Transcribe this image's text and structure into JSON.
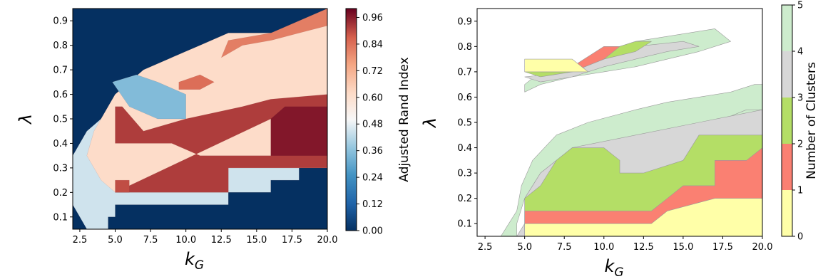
{
  "chart_data": [
    {
      "type": "heatmap",
      "xlabel": "k_G",
      "ylabel": "λ",
      "xlim": [
        2,
        20
      ],
      "ylim": [
        0.05,
        0.95
      ],
      "x_ticks": [
        "2.5",
        "5.0",
        "7.5",
        "10.0",
        "12.5",
        "15.0",
        "17.5",
        "20.0"
      ],
      "y_ticks": [
        "0.1",
        "0.2",
        "0.3",
        "0.4",
        "0.5",
        "0.6",
        "0.7",
        "0.8",
        "0.9"
      ],
      "colorbar": {
        "label": "Adjusted Rand Index",
        "range": [
          0,
          1
        ],
        "ticks": [
          "0.00",
          "0.12",
          "0.24",
          "0.36",
          "0.48",
          "0.60",
          "0.72",
          "0.84",
          "0.96"
        ]
      },
      "regions": [
        {
          "value": 0.45,
          "poly": [
            [
              3,
              0.05
            ],
            [
              4.5,
              0.05
            ],
            [
              4.5,
              0.1
            ],
            [
              5,
              0.1
            ],
            [
              5,
              0.15
            ],
            [
              13,
              0.15
            ],
            [
              13,
              0.2
            ],
            [
              16,
              0.2
            ],
            [
              16,
              0.25
            ],
            [
              18,
              0.25
            ],
            [
              18,
              0.3
            ],
            [
              20,
              0.3
            ],
            [
              20,
              0.95
            ],
            [
              19,
              0.9
            ],
            [
              17,
              0.85
            ],
            [
              15,
              0.85
            ],
            [
              13,
              0.85
            ],
            [
              11,
              0.8
            ],
            [
              9,
              0.75
            ],
            [
              8,
              0.7
            ],
            [
              6,
              0.65
            ],
            [
              5,
              0.6
            ],
            [
              4.5,
              0.55
            ],
            [
              4,
              0.5
            ],
            [
              3,
              0.45
            ],
            [
              2,
              0.35
            ],
            [
              2,
              0.15
            ],
            [
              2.5,
              0.1
            ]
          ]
        },
        {
          "value": 0.62,
          "poly": [
            [
              4,
              0.25
            ],
            [
              5,
              0.2
            ],
            [
              13,
              0.2
            ],
            [
              13,
              0.3
            ],
            [
              20,
              0.3
            ],
            [
              20,
              0.9
            ],
            [
              17,
              0.85
            ],
            [
              13,
              0.85
            ],
            [
              11,
              0.8
            ],
            [
              9,
              0.75
            ],
            [
              7,
              0.7
            ],
            [
              5,
              0.6
            ],
            [
              3.5,
              0.45
            ],
            [
              3,
              0.35
            ]
          ]
        },
        {
          "value": 0.35,
          "poly": [
            [
              4.8,
              0.65
            ],
            [
              6,
              0.55
            ],
            [
              8,
              0.5
            ],
            [
              10,
              0.5
            ],
            [
              10,
              0.6
            ],
            [
              8,
              0.65
            ],
            [
              6.5,
              0.68
            ]
          ]
        },
        {
          "value": 0.92,
          "poly": [
            [
              5,
              0.2
            ],
            [
              13,
              0.2
            ],
            [
              13,
              0.3
            ],
            [
              20,
              0.3
            ],
            [
              20,
              0.4
            ],
            [
              19,
              0.42
            ],
            [
              16,
              0.35
            ],
            [
              13,
              0.35
            ],
            [
              11,
              0.35
            ],
            [
              9,
              0.4
            ],
            [
              7,
              0.4
            ],
            [
              5,
              0.4
            ],
            [
              5,
              0.55
            ],
            [
              5.5,
              0.55
            ],
            [
              7,
              0.45
            ],
            [
              10,
              0.5
            ],
            [
              14,
              0.55
            ],
            [
              16,
              0.58
            ],
            [
              20,
              0.6
            ],
            [
              20,
              0.4
            ],
            [
              18,
              0.45
            ],
            [
              16,
              0.5
            ]
          ]
        },
        {
          "value": 0.9,
          "poly": [
            [
              5,
              0.2
            ],
            [
              6,
              0.2
            ],
            [
              6,
              0.25
            ],
            [
              5,
              0.25
            ]
          ]
        },
        {
          "value": 0.97,
          "poly": [
            [
              16,
              0.35
            ],
            [
              20,
              0.35
            ],
            [
              20,
              0.55
            ],
            [
              17,
              0.55
            ],
            [
              16,
              0.5
            ]
          ]
        },
        {
          "value": 0.82,
          "poly": [
            [
              12.5,
              0.75
            ],
            [
              14,
              0.8
            ],
            [
              16,
              0.82
            ],
            [
              18,
              0.85
            ],
            [
              20,
              0.88
            ],
            [
              20,
              0.95
            ],
            [
              18,
              0.9
            ],
            [
              16,
              0.85
            ],
            [
              13,
              0.82
            ]
          ]
        },
        {
          "value": 0.85,
          "poly": [
            [
              9.5,
              0.65
            ],
            [
              11,
              0.68
            ],
            [
              12,
              0.65
            ],
            [
              11,
              0.62
            ],
            [
              9.5,
              0.62
            ]
          ]
        }
      ]
    },
    {
      "type": "heatmap",
      "xlabel": "k_G",
      "ylabel": "λ",
      "xlim": [
        2,
        20
      ],
      "ylim": [
        0.05,
        0.95
      ],
      "x_ticks": [
        "2.5",
        "5.0",
        "7.5",
        "10.0",
        "12.5",
        "15.0",
        "17.5",
        "20.0"
      ],
      "y_ticks": [
        "0.1",
        "0.2",
        "0.3",
        "0.4",
        "0.5",
        "0.6",
        "0.7",
        "0.8",
        "0.9"
      ],
      "colorbar": {
        "label": "Number of Clusters",
        "range": [
          0,
          5
        ],
        "ticks": [
          "0",
          "1",
          "2",
          "3",
          "4",
          "5"
        ],
        "colors": [
          "#ffffa8",
          "#fa8072",
          "#b4de66",
          "#d7d7d7",
          "#cdeccd"
        ]
      },
      "regions": [
        {
          "level": 4,
          "poly": [
            [
              4.5,
              0.05
            ],
            [
              5.5,
              0.05
            ],
            [
              5.5,
              0.1
            ],
            [
              6,
              0.1
            ],
            [
              6,
              0.15
            ],
            [
              6.5,
              0.2
            ],
            [
              7,
              0.25
            ],
            [
              7.5,
              0.3
            ],
            [
              8,
              0.35
            ],
            [
              9,
              0.4
            ],
            [
              10,
              0.45
            ],
            [
              12,
              0.5
            ],
            [
              14,
              0.52
            ],
            [
              16,
              0.55
            ],
            [
              18,
              0.6
            ],
            [
              20,
              0.65
            ],
            [
              20,
              0.05
            ]
          ]
        },
        {
          "level": 4,
          "poly": [
            [
              3.5,
              0.05
            ],
            [
              4,
              0.1
            ],
            [
              4.5,
              0.15
            ],
            [
              4.8,
              0.25
            ],
            [
              5.5,
              0.35
            ],
            [
              7,
              0.45
            ],
            [
              9,
              0.5
            ],
            [
              12,
              0.55
            ],
            [
              14,
              0.58
            ],
            [
              16,
              0.6
            ],
            [
              18,
              0.62
            ],
            [
              19.5,
              0.65
            ],
            [
              20,
              0.65
            ],
            [
              20,
              0.55
            ],
            [
              19,
              0.55
            ],
            [
              17,
              0.5
            ],
            [
              14,
              0.45
            ],
            [
              11,
              0.42
            ],
            [
              8,
              0.4
            ],
            [
              6,
              0.3
            ],
            [
              5,
              0.2
            ],
            [
              4.5,
              0.1
            ],
            [
              4.5,
              0.05
            ]
          ]
        },
        {
          "level": 3,
          "poly": [
            [
              4.5,
              0.05
            ],
            [
              5,
              0.1
            ],
            [
              5,
              0.2
            ],
            [
              6,
              0.3
            ],
            [
              8,
              0.4
            ],
            [
              12,
              0.45
            ],
            [
              16,
              0.5
            ],
            [
              20,
              0.55
            ],
            [
              20,
              0.05
            ]
          ]
        },
        {
          "level": 2,
          "poly": [
            [
              5,
              0.05
            ],
            [
              5,
              0.15
            ],
            [
              5,
              0.2
            ],
            [
              6,
              0.25
            ],
            [
              7,
              0.35
            ],
            [
              8,
              0.4
            ],
            [
              10,
              0.4
            ],
            [
              11,
              0.35
            ],
            [
              11,
              0.3
            ],
            [
              12.5,
              0.3
            ],
            [
              15,
              0.35
            ],
            [
              16,
              0.45
            ],
            [
              20,
              0.45
            ],
            [
              20,
              0.05
            ]
          ]
        },
        {
          "level": 1,
          "poly": [
            [
              5,
              0.05
            ],
            [
              5,
              0.15
            ],
            [
              13,
              0.15
            ],
            [
              14,
              0.2
            ],
            [
              15,
              0.25
            ],
            [
              17,
              0.25
            ],
            [
              17,
              0.35
            ],
            [
              19,
              0.35
            ],
            [
              20,
              0.4
            ],
            [
              20,
              0.05
            ]
          ]
        },
        {
          "level": 0,
          "poly": [
            [
              5,
              0.05
            ],
            [
              5,
              0.1
            ],
            [
              13,
              0.1
            ],
            [
              14,
              0.15
            ],
            [
              17,
              0.2
            ],
            [
              20,
              0.2
            ],
            [
              20,
              0.05
            ]
          ]
        },
        {
          "level": 4,
          "poly": [
            [
              5,
              0.65
            ],
            [
              6,
              0.7
            ],
            [
              8,
              0.72
            ],
            [
              10,
              0.78
            ],
            [
              12,
              0.82
            ],
            [
              15,
              0.85
            ],
            [
              17,
              0.87
            ],
            [
              18,
              0.82
            ],
            [
              16,
              0.78
            ],
            [
              14,
              0.75
            ],
            [
              12,
              0.72
            ],
            [
              10,
              0.7
            ],
            [
              8,
              0.68
            ],
            [
              6,
              0.65
            ],
            [
              5,
              0.62
            ]
          ]
        },
        {
          "level": 3,
          "poly": [
            [
              5,
              0.68
            ],
            [
              8,
              0.7
            ],
            [
              10,
              0.75
            ],
            [
              12,
              0.8
            ],
            [
              15,
              0.82
            ],
            [
              16,
              0.8
            ],
            [
              14,
              0.78
            ],
            [
              12,
              0.75
            ],
            [
              10,
              0.72
            ],
            [
              8,
              0.68
            ],
            [
              6,
              0.66
            ]
          ]
        },
        {
          "level": 2,
          "poly": [
            [
              5,
              0.7
            ],
            [
              8,
              0.72
            ],
            [
              10,
              0.78
            ],
            [
              12,
              0.82
            ],
            [
              13,
              0.82
            ],
            [
              12,
              0.78
            ],
            [
              10,
              0.75
            ],
            [
              8,
              0.7
            ],
            [
              6,
              0.68
            ]
          ]
        },
        {
          "level": 1,
          "poly": [
            [
              5,
              0.72
            ],
            [
              8,
              0.72
            ],
            [
              10,
              0.8
            ],
            [
              11,
              0.8
            ],
            [
              10,
              0.75
            ],
            [
              8,
              0.7
            ],
            [
              6,
              0.7
            ]
          ]
        },
        {
          "level": 0,
          "poly": [
            [
              5,
              0.7
            ],
            [
              9,
              0.7
            ],
            [
              8,
              0.75
            ],
            [
              5,
              0.75
            ]
          ]
        }
      ]
    }
  ]
}
